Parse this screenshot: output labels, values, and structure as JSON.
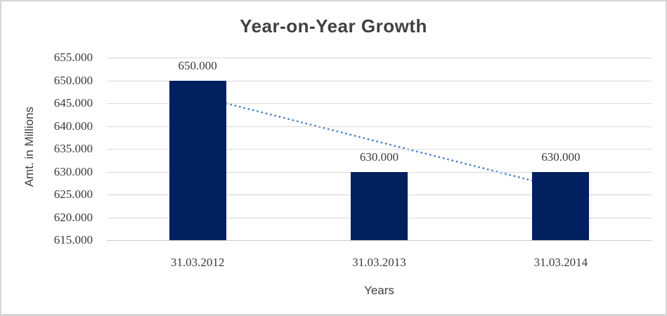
{
  "chart_data": {
    "type": "bar",
    "title": "Year-on-Year Growth",
    "xlabel": "Years",
    "ylabel": "Amt. in Millions",
    "categories": [
      "31.03.2012",
      "31.03.2013",
      "31.03.2014"
    ],
    "values": [
      650,
      630,
      630
    ],
    "data_labels": [
      "650.000",
      "630.000",
      "630.000"
    ],
    "y_ticks": {
      "values": [
        655,
        650,
        645,
        640,
        635,
        630,
        625,
        620,
        615
      ],
      "labels": [
        "655.000",
        "650.000",
        "645.000",
        "640.000",
        "635.000",
        "630.000",
        "625.000",
        "620.000",
        "615.000"
      ]
    },
    "ylim": [
      615,
      655
    ],
    "grid": true,
    "legend": false,
    "trendline": {
      "type": "linear",
      "style": "dotted",
      "start_value": 646.67,
      "end_value": 626.67
    },
    "colors": {
      "bar": "#002060",
      "trendline": "#4e86c8",
      "gridline": "#d9d9d9",
      "text": "#3a3a3a",
      "title": "#404040",
      "border": "#d6d6d6",
      "background": "#ffffff"
    }
  }
}
